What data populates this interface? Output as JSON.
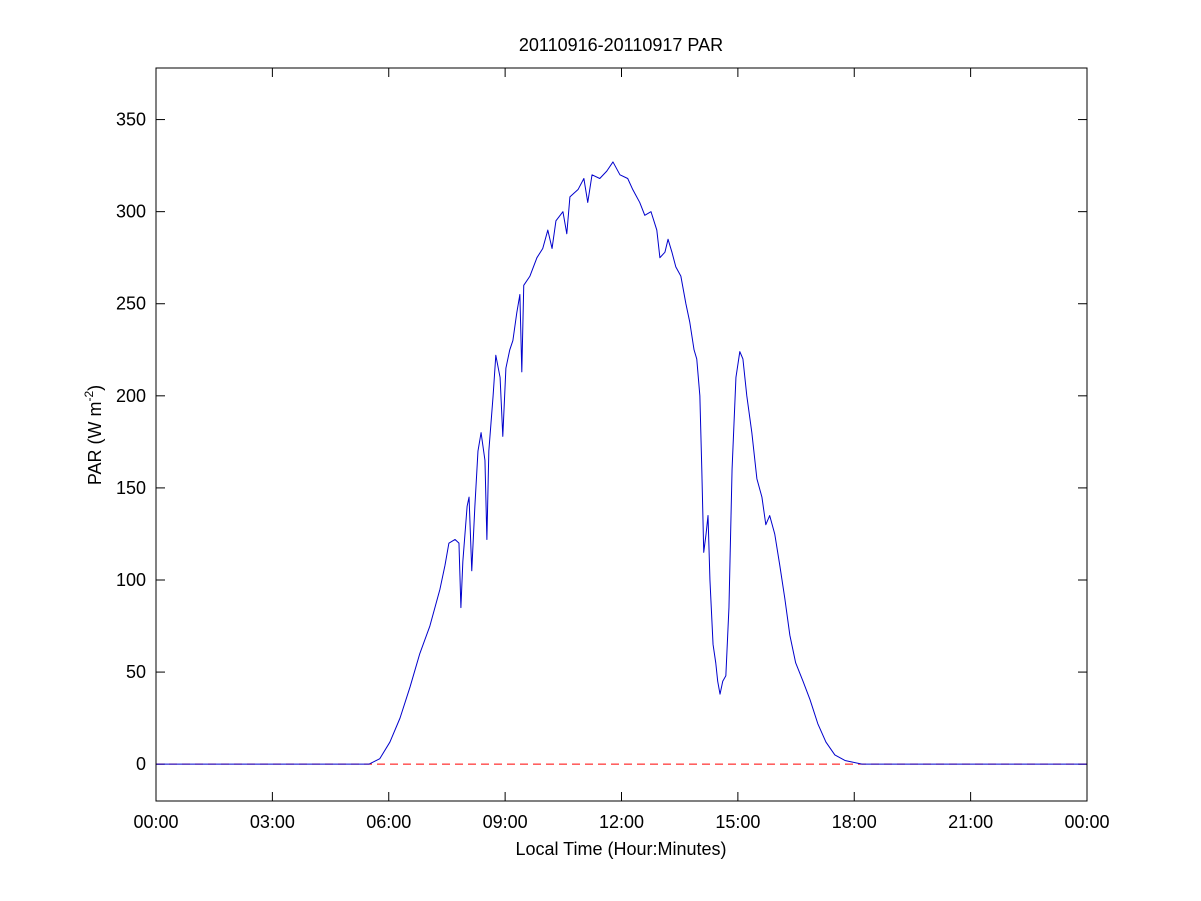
{
  "chart_data": {
    "type": "line",
    "title": "20110916-20110917 PAR",
    "xlabel": "Local Time (Hour:Minutes)",
    "ylabel": [
      "PAR (W m",
      "-2",
      ")"
    ],
    "x": [
      0,
      5.49,
      5.77,
      6.03,
      6.29,
      6.55,
      6.8,
      7.06,
      7.32,
      7.45,
      7.55,
      7.71,
      7.81,
      7.86,
      7.91,
      8.02,
      8.07,
      8.14,
      8.22,
      8.3,
      8.38,
      8.48,
      8.53,
      8.58,
      8.69,
      8.76,
      8.87,
      8.94,
      9.02,
      9.12,
      9.2,
      9.3,
      9.38,
      9.43,
      9.48,
      9.64,
      9.82,
      9.97,
      10.1,
      10.21,
      10.31,
      10.49,
      10.59,
      10.67,
      10.88,
      11.03,
      11.13,
      11.24,
      11.44,
      11.62,
      11.78,
      11.96,
      12.16,
      12.29,
      12.47,
      12.6,
      12.76,
      12.91,
      12.99,
      13.12,
      13.2,
      13.3,
      13.4,
      13.53,
      13.66,
      13.76,
      13.87,
      13.94,
      14.02,
      14.07,
      14.12,
      14.18,
      14.23,
      14.28,
      14.36,
      14.43,
      14.48,
      14.54,
      14.61,
      14.69,
      14.77,
      14.85,
      14.95,
      15.05,
      15.13,
      15.23,
      15.36,
      15.49,
      15.62,
      15.72,
      15.82,
      15.95,
      16.08,
      16.21,
      16.34,
      16.49,
      16.68,
      16.86,
      17.06,
      17.27,
      17.5,
      17.76,
      18.2,
      24
    ],
    "series": [
      {
        "color": "#0000cc",
        "values": [
          0,
          0,
          3,
          12,
          25,
          42,
          60,
          75,
          95,
          108,
          120,
          122,
          120,
          85,
          110,
          140,
          145,
          105,
          140,
          170,
          180,
          165,
          122,
          170,
          200,
          222,
          210,
          178,
          215,
          225,
          230,
          245,
          255,
          213,
          260,
          265,
          275,
          280,
          290,
          280,
          295,
          300,
          288,
          308,
          312,
          318,
          305,
          320,
          318,
          322,
          327,
          320,
          318,
          312,
          305,
          298,
          300,
          290,
          275,
          278,
          285,
          278,
          270,
          265,
          250,
          240,
          225,
          220,
          200,
          160,
          115,
          125,
          135,
          100,
          65,
          55,
          45,
          38,
          45,
          48,
          85,
          160,
          210,
          224,
          220,
          200,
          180,
          155,
          145,
          130,
          135,
          125,
          108,
          90,
          70,
          55,
          45,
          35,
          22,
          12,
          5,
          2,
          0,
          0
        ]
      }
    ],
    "hlines": [
      {
        "y": 0,
        "color": "#ff0000",
        "style": "dashed"
      }
    ],
    "xlim": [
      0,
      24
    ],
    "ylim": [
      -20,
      378
    ],
    "xticks": [
      {
        "value": 0,
        "label": "00:00"
      },
      {
        "value": 3,
        "label": "03:00"
      },
      {
        "value": 6,
        "label": "06:00"
      },
      {
        "value": 9,
        "label": "09:00"
      },
      {
        "value": 12,
        "label": "12:00"
      },
      {
        "value": 15,
        "label": "15:00"
      },
      {
        "value": 18,
        "label": "18:00"
      },
      {
        "value": 21,
        "label": "21:00"
      },
      {
        "value": 24,
        "label": "00:00"
      }
    ],
    "yticks": [
      0,
      50,
      100,
      150,
      200,
      250,
      300,
      350
    ],
    "grid": false
  }
}
